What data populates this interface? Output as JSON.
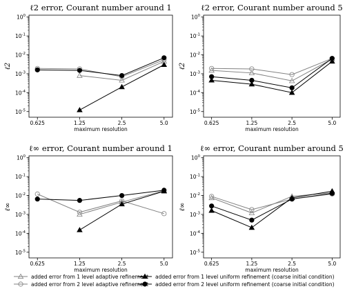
{
  "chart_data": [
    {
      "type": "line",
      "title": "ℓ2 error, Courant number around 1",
      "ylabel": "ℓ2",
      "xlabel": "maximum resolution",
      "xscale": "log2",
      "yscale": "log",
      "x_ticks": [
        "0.625",
        "1.25",
        "2.5",
        "5.0"
      ],
      "y_ticks": [
        "10^-5",
        "10^-4",
        "10^-3",
        "10^-2",
        "10^-1",
        "10^0"
      ],
      "ylim": [
        5e-06,
        1
      ],
      "series": [
        {
          "name": "added error from 1 level adaptive refinement",
          "x": [
            1.25,
            2.5,
            5.0
          ],
          "y": [
            0.0008,
            0.00045,
            0.0045
          ]
        },
        {
          "name": "added error from 2 level adaptive refinement",
          "x": [
            0.625,
            1.25,
            2.5,
            5.0
          ],
          "y": [
            0.0019,
            0.0018,
            0.0007,
            0.0055
          ]
        },
        {
          "name": "added error from 1 level uniform refinement (coarse initial condition)",
          "x": [
            1.25,
            2.5,
            5.0
          ],
          "y": [
            1.2e-05,
            0.0002,
            0.003
          ]
        },
        {
          "name": "added error from 2 level uniform refinement (coarse initial condition)",
          "x": [
            0.625,
            1.25,
            2.5,
            5.0
          ],
          "y": [
            0.0016,
            0.0015,
            0.0008,
            0.007
          ]
        }
      ]
    },
    {
      "type": "line",
      "title": "ℓ2 error, Courant number around 5",
      "ylabel": "ℓ2",
      "xlabel": "maximum resolution",
      "xscale": "log2",
      "yscale": "log",
      "x_ticks": [
        "0.625",
        "1.25",
        "2.5",
        "5.0"
      ],
      "y_ticks": [
        "10^-5",
        "10^-4",
        "10^-3",
        "10^-2",
        "10^-1",
        "10^0"
      ],
      "ylim": [
        5e-06,
        1
      ],
      "series": [
        {
          "name": "added error from 1 level adaptive refinement",
          "x": [
            0.625,
            1.25,
            2.5,
            5.0
          ],
          "y": [
            0.0015,
            0.0011,
            0.00042,
            0.006
          ]
        },
        {
          "name": "added error from 2 level adaptive refinement",
          "x": [
            0.625,
            1.25,
            2.5,
            5.0
          ],
          "y": [
            0.0019,
            0.0018,
            0.0009,
            0.0065
          ]
        },
        {
          "name": "added error from 1 level uniform refinement (coarse initial condition)",
          "x": [
            0.625,
            1.25,
            2.5,
            5.0
          ],
          "y": [
            0.00045,
            0.00028,
            0.0001,
            0.0045
          ]
        },
        {
          "name": "added error from 2 level uniform refinement (coarse initial condition)",
          "x": [
            0.625,
            1.25,
            2.5,
            5.0
          ],
          "y": [
            0.0007,
            0.00045,
            0.00018,
            0.0065
          ]
        }
      ]
    },
    {
      "type": "line",
      "title": "ℓ∞ error, Courant number around 1",
      "ylabel": "ℓ∞",
      "xlabel": "maximum resolution",
      "xscale": "log2",
      "yscale": "log",
      "x_ticks": [
        "0.625",
        "1.25",
        "2.5",
        "5.0"
      ],
      "y_ticks": [
        "10^-5",
        "10^-4",
        "10^-3",
        "10^-2",
        "10^-1",
        "10^0"
      ],
      "ylim": [
        5e-06,
        1
      ],
      "series": [
        {
          "name": "added error from 1 level adaptive refinement",
          "x": [
            1.25,
            2.5,
            5.0
          ],
          "y": [
            0.001,
            0.0045,
            0.018
          ]
        },
        {
          "name": "added error from 2 level adaptive refinement",
          "x": [
            0.625,
            1.25,
            2.5,
            5.0
          ],
          "y": [
            0.012,
            0.0013,
            0.0052,
            0.0011
          ]
        },
        {
          "name": "added error from 1 level uniform refinement (coarse initial condition)",
          "x": [
            1.25,
            2.5,
            5.0
          ],
          "y": [
            0.00015,
            0.0035,
            0.017
          ]
        },
        {
          "name": "added error from 2 level uniform refinement (coarse initial condition)",
          "x": [
            0.625,
            1.25,
            2.5,
            5.0
          ],
          "y": [
            0.0065,
            0.0055,
            0.01,
            0.019
          ]
        }
      ]
    },
    {
      "type": "line",
      "title": "ℓ∞ error, Courant number around 5",
      "ylabel": "ℓ∞",
      "xlabel": "maximum resolution",
      "xscale": "log2",
      "yscale": "log",
      "x_ticks": [
        "0.625",
        "1.25",
        "2.5",
        "5.0"
      ],
      "y_ticks": [
        "10^-5",
        "10^-4",
        "10^-3",
        "10^-2",
        "10^-1",
        "10^0"
      ],
      "ylim": [
        5e-06,
        1
      ],
      "series": [
        {
          "name": "added error from 1 level adaptive refinement",
          "x": [
            0.625,
            1.25,
            2.5,
            5.0
          ],
          "y": [
            0.0075,
            0.0012,
            0.009,
            0.014
          ]
        },
        {
          "name": "added error from 2 level adaptive refinement",
          "x": [
            0.625,
            1.25,
            2.5,
            5.0
          ],
          "y": [
            0.009,
            0.0018,
            0.0065,
            0.012
          ]
        },
        {
          "name": "added error from 1 level uniform refinement (coarse initial condition)",
          "x": [
            0.625,
            1.25,
            2.5,
            5.0
          ],
          "y": [
            0.0016,
            0.0002,
            0.0075,
            0.017
          ]
        },
        {
          "name": "added error from 2 level uniform refinement (coarse initial condition)",
          "x": [
            0.625,
            1.25,
            2.5,
            5.0
          ],
          "y": [
            0.0028,
            0.0005,
            0.0065,
            0.013
          ]
        }
      ]
    }
  ],
  "legend": {
    "placement": "bottom",
    "entries": [
      {
        "label": "added error from 1 level adaptive refinement",
        "marker": "triangle-open",
        "color": "#808080"
      },
      {
        "label": "added error from 2 level adaptive refinement",
        "marker": "circle-open",
        "color": "#808080"
      },
      {
        "label": "added error from 1 level uniform refinement (coarse initial condition)",
        "marker": "triangle-filled",
        "color": "#000000"
      },
      {
        "label": "added error from 2 level uniform refinement (coarse initial condition)",
        "marker": "circle-filled",
        "color": "#000000"
      }
    ]
  }
}
